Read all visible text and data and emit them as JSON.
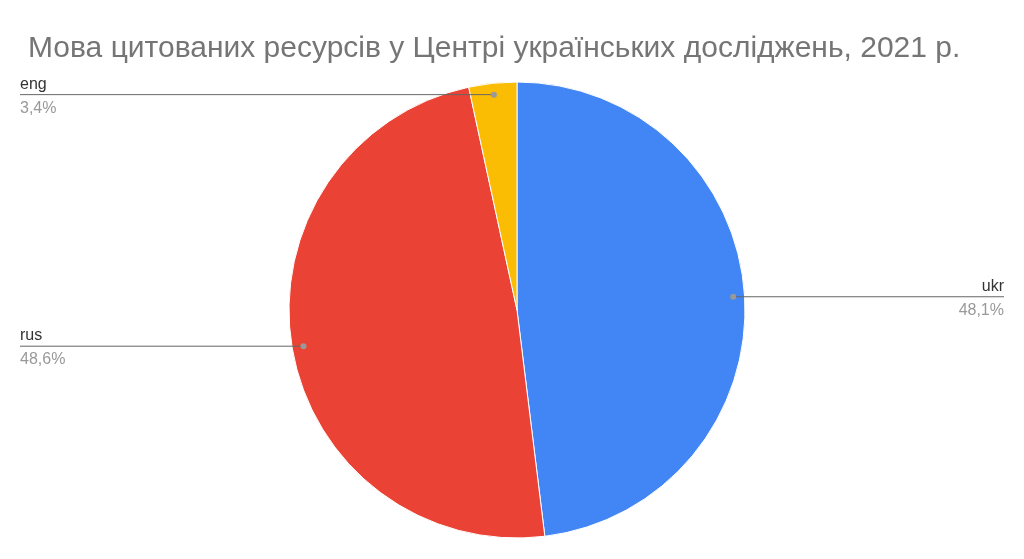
{
  "chart_data": {
    "type": "pie",
    "title": "Мова цитованих ресурсів у Центрі українських досліджень, 2021 р.",
    "categories": [
      "ukr",
      "rus",
      "eng"
    ],
    "values": [
      48.1,
      48.6,
      3.4
    ],
    "colors": [
      "#4285f4",
      "#ea4335",
      "#fbbc04"
    ],
    "value_labels": [
      "48,1%",
      "48,6%",
      "3,4%"
    ],
    "legend": false
  }
}
